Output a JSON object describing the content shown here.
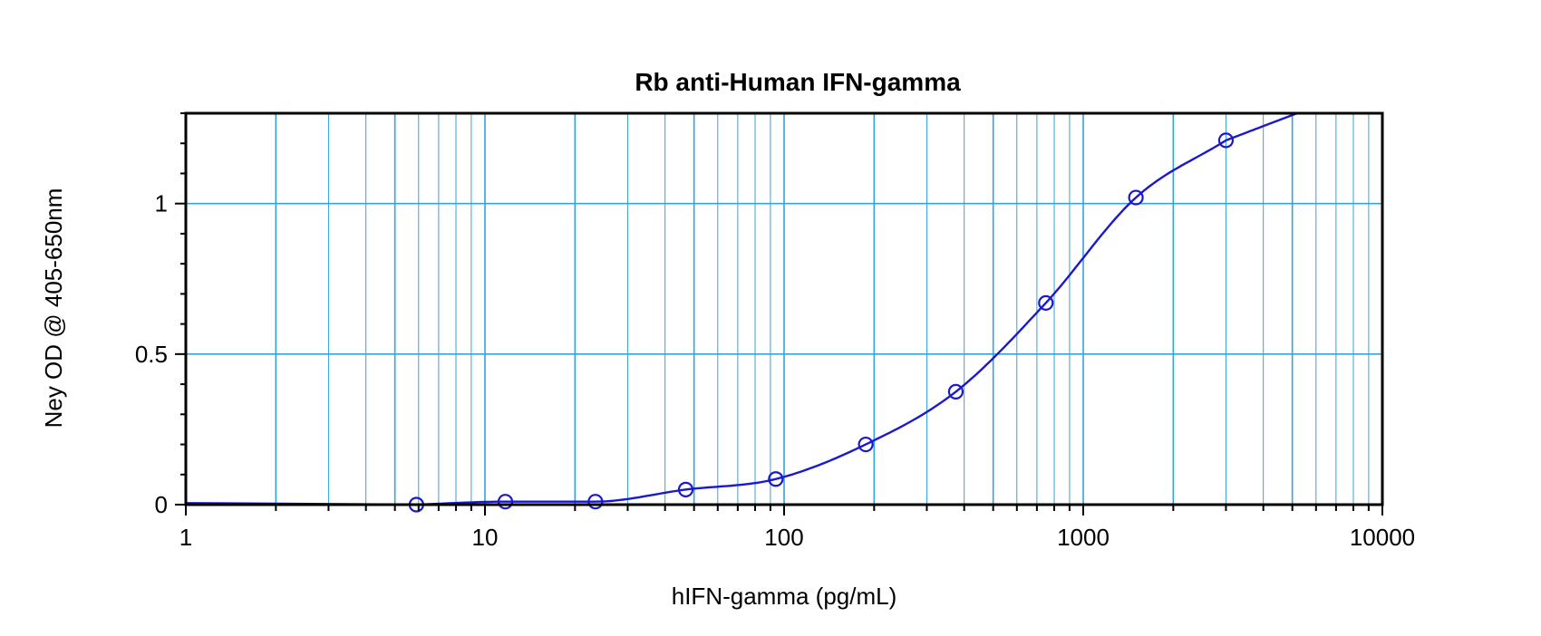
{
  "chart_data": {
    "type": "scatter",
    "title": "Rb anti-Human IFN-gamma",
    "xlabel": "hIFN-gamma (pg/mL)",
    "ylabel": "Ney OD @ 405-650nm",
    "x_scale": "log",
    "xlim": [
      1,
      10000
    ],
    "ylim": [
      0,
      1.3
    ],
    "grid": true,
    "x_ticks": [
      "1",
      "10",
      "100",
      "1000",
      "10000"
    ],
    "y_ticks": [
      "0",
      "0.5",
      "1"
    ],
    "series": [
      {
        "points": [
          {
            "x": 5.9,
            "y": 0.0
          },
          {
            "x": 11.7,
            "y": 0.01
          },
          {
            "x": 23.4,
            "y": 0.01
          },
          {
            "x": 46.9,
            "y": 0.05
          },
          {
            "x": 93.8,
            "y": 0.085
          },
          {
            "x": 187.5,
            "y": 0.2
          },
          {
            "x": 375,
            "y": 0.375
          },
          {
            "x": 750,
            "y": 0.67
          },
          {
            "x": 1500,
            "y": 1.02
          },
          {
            "x": 3000,
            "y": 1.21
          }
        ]
      }
    ],
    "colors": {
      "data": "#1a1acc",
      "grid": "#33a3dd",
      "axis": "#000000"
    }
  }
}
